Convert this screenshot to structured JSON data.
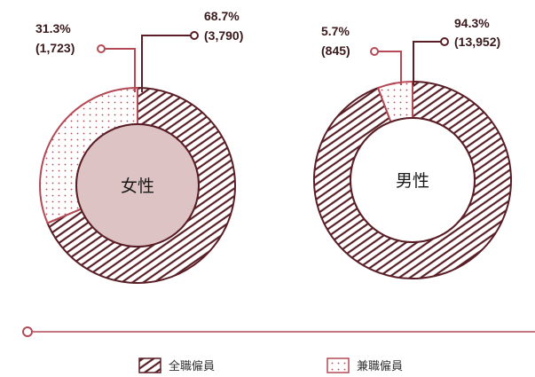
{
  "colors": {
    "fulltime": "#5a1f26",
    "parttime": "#b44a55",
    "women_center_fill": "#ddc3c3",
    "timeline": "#b44a55"
  },
  "chart_data": [
    {
      "type": "pie",
      "center_label": "女性",
      "slices": [
        {
          "category": "全職僱員",
          "percent": 68.7,
          "percent_label": "68.7%",
          "count": 3790,
          "count_label": "(3,790)"
        },
        {
          "category": "兼職僱員",
          "percent": 31.3,
          "percent_label": "31.3%",
          "count": 1723,
          "count_label": "(1,723)"
        }
      ]
    },
    {
      "type": "pie",
      "center_label": "男性",
      "slices": [
        {
          "category": "全職僱員",
          "percent": 94.3,
          "percent_label": "94.3%",
          "count": 13952,
          "count_label": "(13,952)"
        },
        {
          "category": "兼職僱員",
          "percent": 5.7,
          "percent_label": "5.7%",
          "count": 845,
          "count_label": "(845)"
        }
      ]
    }
  ],
  "legend": [
    {
      "key": "fulltime",
      "label": "全職僱員"
    },
    {
      "key": "parttime",
      "label": "兼職僱員"
    }
  ]
}
